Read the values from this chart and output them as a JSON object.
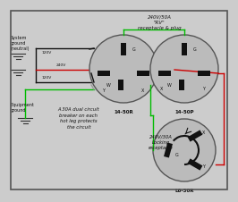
{
  "bg_color": "#cccccc",
  "title": "240V/50A\n\"RV\"\nreceptacle & plug",
  "subtitle_bottom": "240V/30A\nLocking\nreceptacle",
  "label_14_50R": "14-50R",
  "label_14_50P": "14-50P",
  "label_L6_30R": "L6-30R",
  "text_center": "A 30A dual circuit\nbreaker on each\nhot leg protects\nthe circuit",
  "left_label_top": "System\nground\n(neutral)",
  "left_label_bot": "Equipment\nground",
  "volt_labels": [
    "120V",
    "120V",
    "240V"
  ],
  "wire_green": "#00bb00",
  "wire_red": "#cc0000",
  "wire_black": "#111111",
  "wire_white": "#999999",
  "slot_color": "#111111",
  "circle_face": "#bbbbbb",
  "circle_edge": "#555555",
  "text_color": "#111111",
  "border_color": "#555555"
}
